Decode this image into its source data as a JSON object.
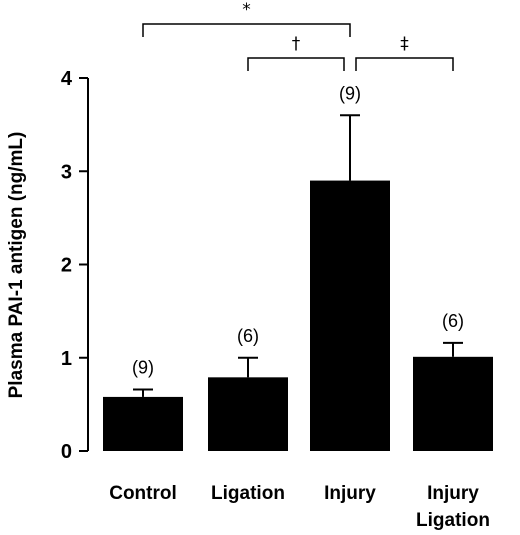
{
  "chart_data": {
    "type": "bar",
    "title": "",
    "xlabel": "",
    "ylabel": "Plasma PAI-1 antigen (ng/mL)",
    "ylim": [
      0,
      4
    ],
    "yticks": [
      0,
      1,
      2,
      3,
      4
    ],
    "yticks_labels": [
      "0",
      "1",
      "2",
      "3",
      "4"
    ],
    "grid": false,
    "categories": [
      {
        "lines": [
          "Control"
        ]
      },
      {
        "lines": [
          "Ligation"
        ]
      },
      {
        "lines": [
          "Injury"
        ]
      },
      {
        "lines": [
          "Injury",
          "Ligation"
        ]
      }
    ],
    "values": [
      0.58,
      0.79,
      2.9,
      1.01
    ],
    "error_upper": [
      0.66,
      1.0,
      3.6,
      1.16
    ],
    "n_labels": [
      "(9)",
      "(6)",
      "(9)",
      "(6)"
    ],
    "bar_color": "#000000",
    "significance": [
      {
        "mark": "*",
        "from": 0,
        "to": 2,
        "level": 0
      },
      {
        "mark": "†",
        "from": 1,
        "to": 2,
        "level": 1
      },
      {
        "mark": "‡",
        "from": 2,
        "to": 3,
        "level": 1
      }
    ]
  }
}
